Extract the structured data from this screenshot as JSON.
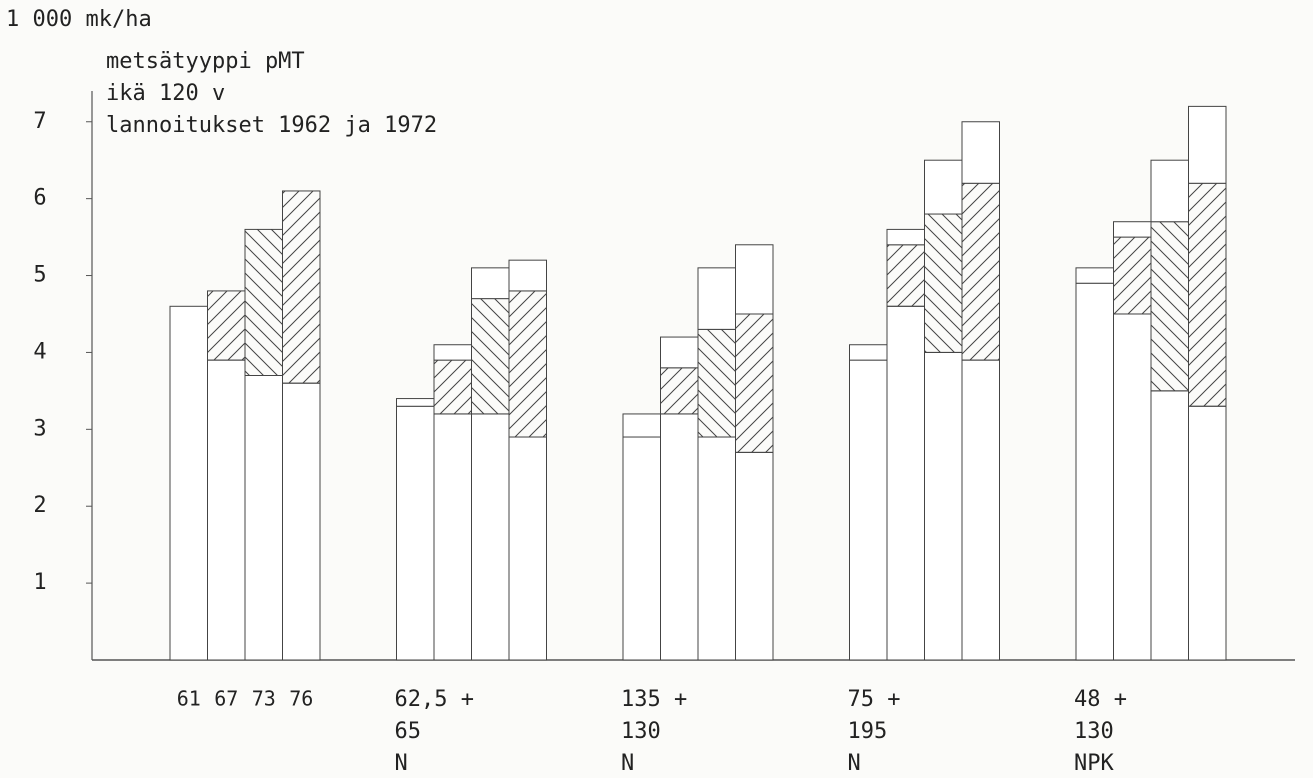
{
  "chart_data": {
    "type": "stacked_bar",
    "y_label": "1 000 mk/ha",
    "annotations": [
      "metsätyyppi pMT",
      "ikä 120 v",
      "lannoitukset 1962 ja 1972"
    ],
    "categories": [
      "61",
      "67",
      "73",
      "76",
      null,
      null,
      null,
      null,
      null,
      null,
      null,
      null,
      null,
      null,
      null,
      null,
      null,
      null,
      null,
      null
    ],
    "group_labels": [
      null,
      [
        "62,5 +",
        "65",
        "N"
      ],
      [
        "135 +",
        "130",
        "N"
      ],
      [
        "75 +",
        "195",
        "N"
      ],
      [
        "48 +",
        "130",
        "NPK"
      ]
    ],
    "series": [
      {
        "color": "#ffffff",
        "values": [
          4.6,
          3.9,
          3.7,
          3.6,
          3.3,
          3.2,
          3.2,
          2.9,
          2.9,
          3.2,
          2.9,
          2.7,
          3.9,
          4.6,
          4.0,
          3.9,
          4.9,
          4.5,
          3.5,
          3.3
        ]
      },
      {
        "color": "hatched",
        "values": [
          0,
          0.9,
          1.9,
          2.5,
          0,
          0.7,
          1.5,
          1.9,
          0,
          0.6,
          1.4,
          1.8,
          0,
          0.8,
          1.8,
          2.3,
          0,
          1.0,
          2.2,
          2.9
        ]
      },
      {
        "color": "#ffffff",
        "values": [
          0,
          0,
          0,
          0,
          0.1,
          0.2,
          0.4,
          0.4,
          0.3,
          0.4,
          0.8,
          0.9,
          0.2,
          0.2,
          0.7,
          0.8,
          0.2,
          0.2,
          0.8,
          1.0
        ]
      }
    ],
    "ylim": [
      0,
      7.4
    ],
    "yticks": [
      1,
      2,
      3,
      4,
      5,
      6,
      7
    ]
  }
}
